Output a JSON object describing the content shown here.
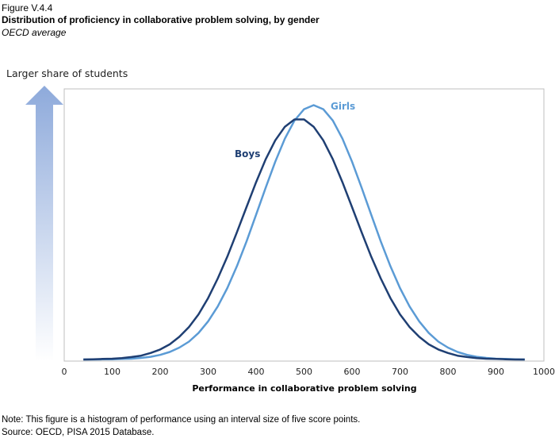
{
  "figure_label": "Figure V.4.4",
  "title": "Distribution of proficiency in collaborative problem solving, by gender",
  "subtitle": "OECD average",
  "y_arrow_label": "Larger share of students",
  "note": "Note: This figure is a histogram of performance using an interval size of five score points.",
  "source": "Source: OECD, PISA 2015 Database.",
  "chart_data": {
    "type": "line",
    "xlabel": "Performance in collaborative problem solving",
    "ylabel": "Larger share of students",
    "xlim": [
      0,
      1000
    ],
    "ylim": [
      0,
      100
    ],
    "x_ticks": [
      "0",
      "100",
      "200",
      "300",
      "400",
      "500",
      "600",
      "700",
      "800",
      "900",
      "1000"
    ],
    "grid": false,
    "x": [
      40,
      60,
      80,
      100,
      120,
      140,
      160,
      180,
      200,
      220,
      240,
      260,
      280,
      300,
      320,
      340,
      360,
      380,
      400,
      420,
      440,
      460,
      480,
      500,
      520,
      540,
      560,
      580,
      600,
      620,
      640,
      660,
      680,
      700,
      720,
      740,
      760,
      780,
      800,
      820,
      840,
      860,
      880,
      900,
      920,
      940,
      960
    ],
    "series": [
      {
        "name": "Boys",
        "color": "#1f3f73",
        "values": [
          0,
          0.1,
          0.2,
          0.3,
          0.5,
          0.9,
          1.4,
          2.4,
          3.7,
          5.6,
          8.4,
          12,
          16.7,
          22.7,
          29.9,
          38,
          47,
          56.3,
          65.5,
          74,
          81,
          86,
          88.7,
          88.7,
          86,
          81,
          74,
          65.5,
          56.3,
          47,
          38,
          29.9,
          22.7,
          16.7,
          12,
          8.4,
          5.6,
          3.7,
          2.4,
          1.4,
          0.9,
          0.5,
          0.3,
          0.2,
          0.1,
          0,
          0
        ]
      },
      {
        "name": "Girls",
        "color": "#5b9bd5",
        "values": [
          0,
          0,
          0.05,
          0.1,
          0.2,
          0.3,
          0.6,
          1,
          1.7,
          2.8,
          4.4,
          6.6,
          9.8,
          14.1,
          19.6,
          26.4,
          34.5,
          43.6,
          53.5,
          63.5,
          73.1,
          81.6,
          88.3,
          92.5,
          94,
          92.5,
          88.3,
          81.6,
          73.1,
          63.5,
          53.5,
          43.6,
          34.5,
          26.4,
          19.6,
          14.1,
          9.8,
          6.6,
          4.4,
          2.8,
          1.7,
          1,
          0.6,
          0.3,
          0.2,
          0.1,
          0
        ]
      }
    ]
  }
}
